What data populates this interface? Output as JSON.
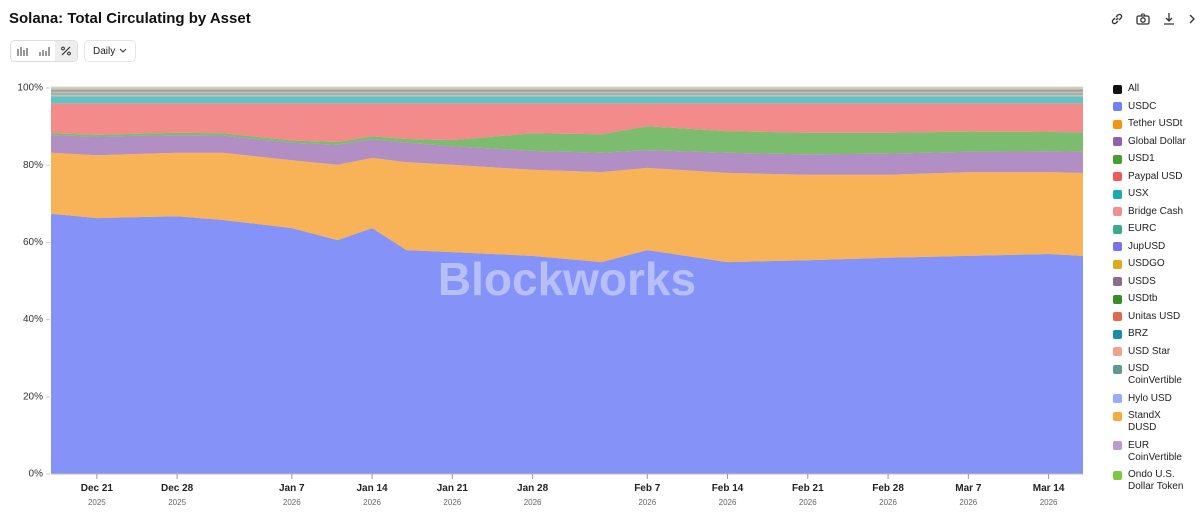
{
  "header": {
    "title": "Solana: Total Circulating by Asset",
    "frequency": "Daily"
  },
  "chart_data": {
    "type": "stacked-area",
    "watermark": "Blockworks",
    "legend_all": "All",
    "x": [
      "2025-12-17",
      "2025-12-21",
      "2025-12-28",
      "2026-01-01",
      "2026-01-07",
      "2026-01-11",
      "2026-01-14",
      "2026-01-17",
      "2026-01-21",
      "2026-01-28",
      "2026-02-03",
      "2026-02-07",
      "2026-02-14",
      "2026-02-21",
      "2026-02-28",
      "2026-03-07",
      "2026-03-14",
      "2026-03-17"
    ],
    "xlim": [
      "2025-12-17",
      "2026-03-17"
    ],
    "xticks": [
      {
        "value": "2025-12-21",
        "label": "Dec 21",
        "year": "2025"
      },
      {
        "value": "2025-12-28",
        "label": "Dec 28",
        "year": "2025"
      },
      {
        "value": "2026-01-07",
        "label": "Jan 7",
        "year": "2026"
      },
      {
        "value": "2026-01-14",
        "label": "Jan 14",
        "year": "2026"
      },
      {
        "value": "2026-01-21",
        "label": "Jan 21",
        "year": "2026"
      },
      {
        "value": "2026-01-28",
        "label": "Jan 28",
        "year": "2026"
      },
      {
        "value": "2026-02-07",
        "label": "Feb 7",
        "year": "2026"
      },
      {
        "value": "2026-02-14",
        "label": "Feb 14",
        "year": "2026"
      },
      {
        "value": "2026-02-21",
        "label": "Feb 21",
        "year": "2026"
      },
      {
        "value": "2026-02-28",
        "label": "Feb 28",
        "year": "2026"
      },
      {
        "value": "2026-03-07",
        "label": "Mar 7",
        "year": "2026"
      },
      {
        "value": "2026-03-14",
        "label": "Mar 14",
        "year": "2026"
      }
    ],
    "ylim": [
      0,
      100
    ],
    "yticks": [
      {
        "value": 0,
        "label": "0%"
      },
      {
        "value": 20,
        "label": "20%"
      },
      {
        "value": 40,
        "label": "40%"
      },
      {
        "value": 60,
        "label": "60%"
      },
      {
        "value": 80,
        "label": "80%"
      },
      {
        "value": 100,
        "label": "100%"
      }
    ],
    "grid": false,
    "series": [
      {
        "name": "USDC",
        "color": "#7080f8",
        "values": [
          67.4,
          66.3,
          66.8,
          65.8,
          63.7,
          60.6,
          63.7,
          58.0,
          57.5,
          56.5,
          54.9,
          58.0,
          54.9,
          55.4,
          56.0,
          56.5,
          57.0,
          56.5
        ]
      },
      {
        "name": "Tether USDt",
        "color": "#f5920f",
        "values": [
          15.8,
          16.3,
          16.4,
          17.4,
          17.6,
          19.5,
          18.2,
          22.8,
          22.6,
          22.3,
          23.3,
          21.3,
          23.1,
          22.1,
          21.5,
          21.7,
          21.2,
          21.5
        ]
      },
      {
        "name": "Global Dollar",
        "color": "#9060ad",
        "values": [
          4.6,
          4.8,
          4.6,
          4.5,
          4.5,
          5.2,
          4.8,
          5.0,
          4.8,
          4.9,
          5.0,
          4.6,
          5.2,
          5.3,
          5.5,
          5.3,
          5.4,
          5.5
        ]
      },
      {
        "name": "USD1",
        "color": "#45a030",
        "values": [
          0.5,
          0.5,
          0.6,
          0.6,
          0.6,
          0.7,
          0.8,
          1.0,
          1.6,
          4.6,
          4.8,
          6.2,
          5.6,
          5.6,
          5.4,
          5.2,
          5.0,
          5.0
        ]
      },
      {
        "name": "Paypal USD",
        "color": "#f05a5a",
        "values": [
          7.7,
          8.1,
          7.6,
          7.7,
          9.6,
          10.0,
          8.5,
          9.2,
          9.5,
          7.7,
          8.0,
          5.9,
          7.2,
          7.6,
          7.6,
          7.3,
          7.4,
          7.5
        ]
      },
      {
        "name": "USX",
        "color": "#1aabab",
        "values": [
          1.8,
          1.8,
          1.8,
          1.8,
          1.8,
          1.8,
          1.8,
          1.8,
          1.8,
          1.8,
          1.8,
          1.8,
          1.8,
          1.8,
          1.8,
          1.8,
          1.8,
          1.8
        ]
      },
      {
        "name": "Bridge Cash",
        "color": "#f08f8f",
        "values": [
          0.3,
          0.3,
          0.3,
          0.3,
          0.3,
          0.3,
          0.3,
          0.3,
          0.3,
          0.3,
          0.3,
          0.3,
          0.3,
          0.3,
          0.3,
          0.3,
          0.3,
          0.3
        ]
      },
      {
        "name": "EURC",
        "color": "#3aaa8c",
        "values": [
          0.4,
          0.4,
          0.4,
          0.4,
          0.4,
          0.4,
          0.4,
          0.4,
          0.4,
          0.4,
          0.4,
          0.4,
          0.4,
          0.4,
          0.4,
          0.4,
          0.4,
          0.4
        ]
      },
      {
        "name": "JupUSD",
        "color": "#7b70f0",
        "values": [
          0.3,
          0.3,
          0.3,
          0.3,
          0.3,
          0.3,
          0.3,
          0.3,
          0.3,
          0.3,
          0.3,
          0.3,
          0.3,
          0.3,
          0.3,
          0.3,
          0.3,
          0.3
        ]
      },
      {
        "name": "USDGO",
        "color": "#e2aa1a",
        "values": [
          0.2,
          0.2,
          0.2,
          0.2,
          0.2,
          0.2,
          0.2,
          0.2,
          0.2,
          0.2,
          0.2,
          0.2,
          0.2,
          0.2,
          0.2,
          0.2,
          0.2,
          0.2
        ]
      },
      {
        "name": "USDS",
        "color": "#8e6a8e",
        "values": [
          0.3,
          0.3,
          0.3,
          0.3,
          0.3,
          0.3,
          0.3,
          0.3,
          0.3,
          0.3,
          0.3,
          0.3,
          0.3,
          0.3,
          0.3,
          0.3,
          0.3,
          0.3
        ]
      },
      {
        "name": "USDtb",
        "color": "#3a8c2a",
        "values": [
          0.2,
          0.2,
          0.2,
          0.2,
          0.2,
          0.2,
          0.2,
          0.2,
          0.2,
          0.2,
          0.2,
          0.2,
          0.2,
          0.2,
          0.2,
          0.2,
          0.2,
          0.2
        ]
      },
      {
        "name": "Unitas USD",
        "color": "#e2684c",
        "values": [
          0.1,
          0.1,
          0.1,
          0.1,
          0.1,
          0.1,
          0.1,
          0.1,
          0.1,
          0.1,
          0.1,
          0.1,
          0.1,
          0.1,
          0.1,
          0.1,
          0.1,
          0.1
        ]
      },
      {
        "name": "BRZ",
        "color": "#1a8caa",
        "values": [
          0.1,
          0.1,
          0.1,
          0.1,
          0.1,
          0.1,
          0.1,
          0.1,
          0.1,
          0.1,
          0.1,
          0.1,
          0.1,
          0.1,
          0.1,
          0.1,
          0.1,
          0.1
        ]
      },
      {
        "name": "USD Star",
        "color": "#f0a28c",
        "values": [
          0.1,
          0.1,
          0.1,
          0.1,
          0.1,
          0.1,
          0.1,
          0.1,
          0.1,
          0.1,
          0.1,
          0.1,
          0.1,
          0.1,
          0.1,
          0.1,
          0.1,
          0.1
        ]
      },
      {
        "name": "USD CoinVertible",
        "color": "#5c9c8c",
        "values": [
          0.1,
          0.1,
          0.1,
          0.1,
          0.1,
          0.1,
          0.1,
          0.1,
          0.1,
          0.1,
          0.1,
          0.1,
          0.1,
          0.1,
          0.1,
          0.1,
          0.1,
          0.1
        ]
      },
      {
        "name": "Hylo USD",
        "color": "#9caaf8",
        "values": [
          0.1,
          0.1,
          0.1,
          0.1,
          0.1,
          0.1,
          0.1,
          0.1,
          0.1,
          0.1,
          0.1,
          0.1,
          0.1,
          0.1,
          0.1,
          0.1,
          0.1,
          0.1
        ]
      },
      {
        "name": "StandX DUSD",
        "color": "#f5aa42",
        "values": [
          0.1,
          0.1,
          0.1,
          0.1,
          0.1,
          0.1,
          0.1,
          0.1,
          0.1,
          0.1,
          0.1,
          0.1,
          0.1,
          0.1,
          0.1,
          0.1,
          0.1,
          0.1
        ]
      },
      {
        "name": "EUR CoinVertible",
        "color": "#ba9cca",
        "values": [
          0.1,
          0.1,
          0.1,
          0.1,
          0.1,
          0.1,
          0.1,
          0.1,
          0.1,
          0.1,
          0.1,
          0.1,
          0.1,
          0.1,
          0.1,
          0.1,
          0.1,
          0.1
        ]
      },
      {
        "name": "Ondo U.S. Dollar Token",
        "color": "#7cca42",
        "values": [
          0.1,
          0.1,
          0.1,
          0.1,
          0.1,
          0.1,
          0.1,
          0.1,
          0.1,
          0.1,
          0.1,
          0.1,
          0.1,
          0.1,
          0.1,
          0.1,
          0.1,
          0.1
        ]
      }
    ]
  }
}
